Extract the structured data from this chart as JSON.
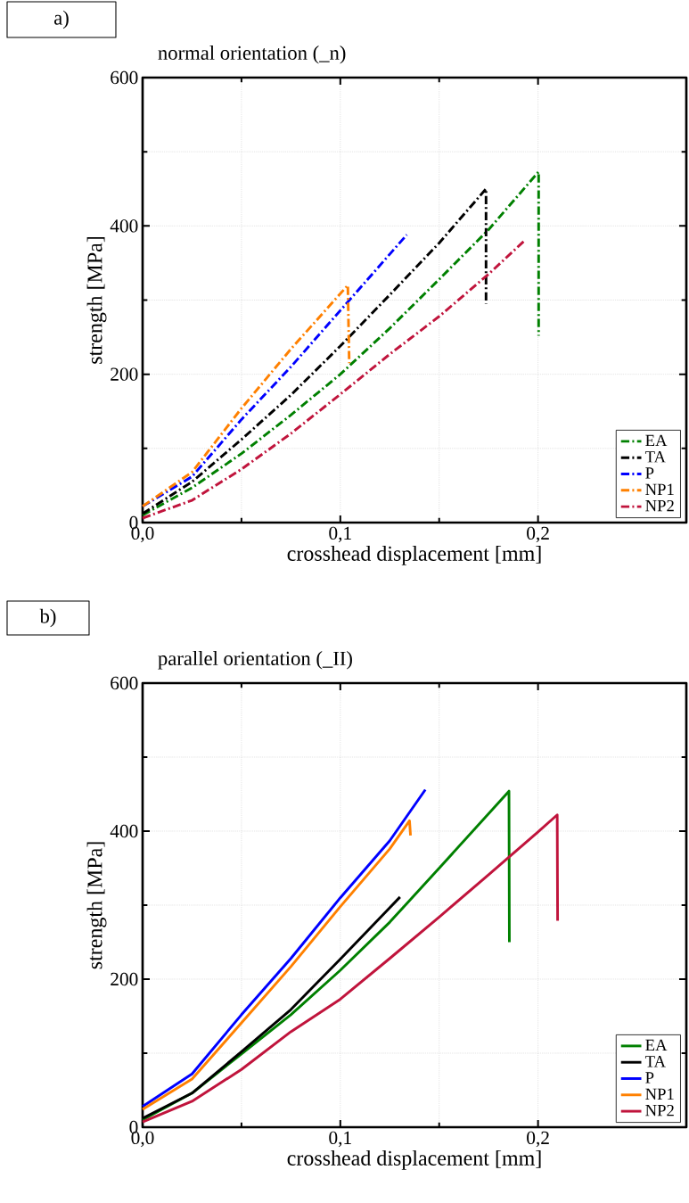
{
  "chart_data": [
    {
      "type": "line",
      "title": "normal orientation (_n)",
      "xlabel": "crosshead displacement [mm]",
      "ylabel": "strength [MPa]",
      "annotations": [
        "a)"
      ],
      "xlim": [
        0,
        0.275
      ],
      "ylim": [
        0,
        600
      ],
      "xticks": [
        {
          "value": 0,
          "label": "0,0"
        },
        {
          "value": 0.1,
          "label": "0,1"
        },
        {
          "value": 0.2,
          "label": "0,2"
        }
      ],
      "yticks": [
        0,
        200,
        400,
        600
      ],
      "grid": true,
      "legend": "bottom right",
      "line_style": "dashed",
      "marker": "none",
      "series": [
        {
          "name": "EA",
          "color": "#008000",
          "x": [
            0,
            0.025,
            0.05,
            0.075,
            0.1,
            0.125,
            0.15,
            0.175,
            0.2003,
            0.2003
          ],
          "values": [
            10,
            47,
            93,
            145,
            200,
            262,
            328,
            395,
            473,
            252
          ]
        },
        {
          "name": "TA",
          "color": "#000000",
          "x": [
            0,
            0.025,
            0.05,
            0.075,
            0.1,
            0.125,
            0.15,
            0.1737,
            0.1737
          ],
          "values": [
            12,
            55,
            112,
            172,
            238,
            307,
            377,
            450,
            295
          ]
        },
        {
          "name": "P",
          "color": "#0000ff",
          "x": [
            0,
            0.025,
            0.05,
            0.075,
            0.1,
            0.1336
          ],
          "values": [
            22,
            62,
            139,
            210,
            286,
            388
          ]
        },
        {
          "name": "NP1",
          "color": "#ff8000",
          "x": [
            0,
            0.025,
            0.05,
            0.075,
            0.1038,
            0.1045
          ],
          "values": [
            22,
            68,
            154,
            234,
            320,
            215
          ]
        },
        {
          "name": "NP2",
          "color": "#c0143c",
          "x": [
            0,
            0.025,
            0.05,
            0.075,
            0.1,
            0.125,
            0.15,
            0.175,
            0.1935
          ],
          "values": [
            6,
            30,
            72,
            120,
            173,
            227,
            278,
            335,
            381
          ]
        }
      ]
    },
    {
      "type": "line",
      "title": "parallel orientation (_II)",
      "xlabel": "crosshead displacement [mm]",
      "ylabel": "strength [MPa]",
      "annotations": [
        "b)"
      ],
      "xlim": [
        0,
        0.275
      ],
      "ylim": [
        0,
        600
      ],
      "xticks": [
        {
          "value": 0,
          "label": "0,0"
        },
        {
          "value": 0.1,
          "label": "0,1"
        },
        {
          "value": 0.2,
          "label": "0,2"
        }
      ],
      "yticks": [
        0,
        200,
        400,
        600
      ],
      "grid": true,
      "legend": "bottom right",
      "line_style": "solid",
      "marker": "none",
      "series": [
        {
          "name": "EA",
          "color": "#008000",
          "x": [
            0,
            0.025,
            0.05,
            0.075,
            0.1,
            0.125,
            0.15,
            0.1853,
            0.1855
          ],
          "values": [
            10,
            46,
            99,
            152,
            212,
            277,
            350,
            454,
            250
          ]
        },
        {
          "name": "TA",
          "color": "#000000",
          "x": [
            0,
            0.025,
            0.05,
            0.075,
            0.1,
            0.1302
          ],
          "values": [
            12,
            46,
            102,
            159,
            227,
            311
          ]
        },
        {
          "name": "P",
          "color": "#0000ff",
          "x": [
            0,
            0.025,
            0.05,
            0.075,
            0.1,
            0.125,
            0.143
          ],
          "values": [
            28,
            72,
            152,
            228,
            310,
            387,
            456
          ]
        },
        {
          "name": "NP1",
          "color": "#ff8000",
          "x": [
            0,
            0.025,
            0.05,
            0.075,
            0.1,
            0.125,
            0.135,
            0.1355
          ],
          "values": [
            24,
            65,
            141,
            217,
            298,
            376,
            414,
            394
          ]
        },
        {
          "name": "NP2",
          "color": "#c0143c",
          "x": [
            0,
            0.025,
            0.05,
            0.075,
            0.1,
            0.125,
            0.15,
            0.175,
            0.2,
            0.2097,
            0.2099
          ],
          "values": [
            7,
            35,
            78,
            129,
            173,
            228,
            284,
            341,
            399,
            422,
            279
          ]
        }
      ]
    }
  ]
}
